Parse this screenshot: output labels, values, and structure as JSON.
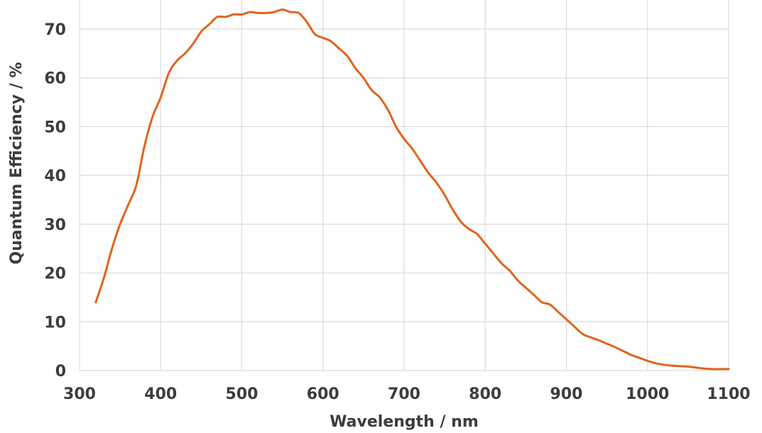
{
  "chart_data": {
    "type": "line",
    "title": "",
    "xlabel": "Wavelength / nm",
    "ylabel": "Quantum Efficiency / %",
    "xlim": [
      300,
      1100
    ],
    "ylim": [
      0,
      75
    ],
    "x_ticks": [
      300,
      400,
      500,
      600,
      700,
      800,
      900,
      1000,
      1100
    ],
    "y_ticks": [
      0,
      10,
      20,
      30,
      40,
      50,
      60,
      70
    ],
    "grid": true,
    "legend": "none",
    "line_color": "#e0641e",
    "grid_color": "#dcdcdc",
    "series": [
      {
        "x": [
          320,
          330,
          340,
          350,
          360,
          370,
          380,
          390,
          400,
          410,
          420,
          430,
          440,
          450,
          460,
          470,
          480,
          490,
          500,
          510,
          520,
          530,
          540,
          550,
          560,
          570,
          580,
          590,
          600,
          610,
          620,
          630,
          640,
          650,
          660,
          670,
          680,
          690,
          700,
          710,
          720,
          730,
          740,
          750,
          760,
          770,
          780,
          790,
          800,
          810,
          820,
          830,
          840,
          850,
          860,
          870,
          880,
          890,
          900,
          910,
          920,
          930,
          940,
          950,
          960,
          970,
          980,
          990,
          1000,
          1010,
          1020,
          1030,
          1040,
          1050,
          1060,
          1070,
          1080,
          1090,
          1100
        ],
        "values": [
          14,
          19,
          25,
          30,
          34,
          38,
          46,
          52,
          56,
          61,
          63.5,
          65,
          67,
          69.5,
          71,
          72.5,
          72.5,
          73,
          73,
          73.5,
          73.3,
          73.3,
          73.5,
          74,
          73.5,
          73.3,
          71.5,
          69,
          68.2,
          67.5,
          66,
          64.5,
          62,
          60,
          57.5,
          56,
          53.5,
          50,
          47.5,
          45.5,
          43,
          40.5,
          38.5,
          36,
          33,
          30.5,
          29,
          28,
          26,
          24,
          22,
          20.5,
          18.5,
          17,
          15.5,
          14,
          13.5,
          12,
          10.5,
          9,
          7.5,
          6.8,
          6.2,
          5.5,
          4.8,
          4,
          3.2,
          2.6,
          2,
          1.5,
          1.2,
          1,
          0.9,
          0.8,
          0.6,
          0.4,
          0.3,
          0.3,
          0.3
        ]
      }
    ]
  }
}
